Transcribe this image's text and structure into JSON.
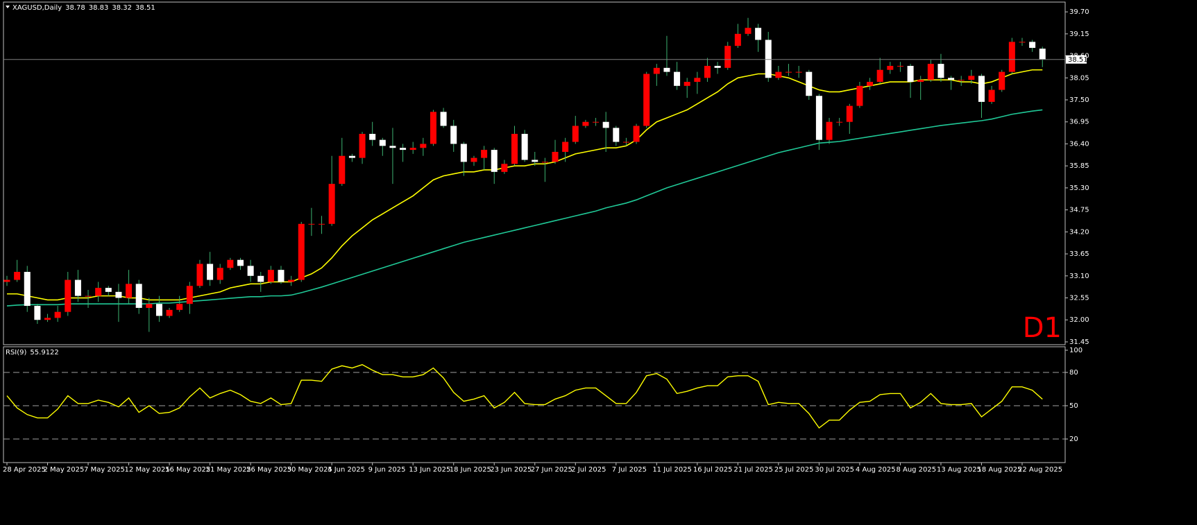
{
  "chart_data": [
    {
      "type": "candlestick",
      "title": "XAGUSD,Daily",
      "categories": [
        "28 Apr 2025",
        null,
        null,
        null,
        "2 May 2025",
        null,
        null,
        null,
        "7 May 2025",
        null,
        null,
        null,
        "12 May 2025",
        null,
        null,
        null,
        "16 May 2025",
        null,
        null,
        null,
        "21 May 2025",
        null,
        null,
        null,
        "26 May 2025",
        null,
        null,
        null,
        "30 May 2025",
        null,
        null,
        null,
        "4 Jun 2025",
        null,
        null,
        null,
        "9 Jun 2025",
        null,
        null,
        null,
        "13 Jun 2025",
        null,
        null,
        null,
        "18 Jun 2025",
        null,
        null,
        null,
        "23 Jun 2025",
        null,
        null,
        null,
        "27 Jun 2025",
        null,
        null,
        null,
        "2 Jul 2025",
        null,
        null,
        null,
        "7 Jul 2025",
        null,
        null,
        null,
        "11 Jul 2025",
        null,
        null,
        null,
        "16 Jul 2025",
        null,
        null,
        null,
        "21 Jul 2025",
        null,
        null,
        null,
        "25 Jul 2025",
        null,
        null,
        null,
        "30 Jul 2025",
        null,
        null,
        null,
        "4 Aug 2025",
        null,
        null,
        null,
        "8 Aug 2025",
        null,
        null,
        null,
        "13 Aug 2025",
        null,
        null,
        null,
        "18 Aug 2025",
        null,
        null,
        null,
        "22 Aug 2025",
        null,
        null
      ],
      "open": [
        32.95,
        33.0,
        33.2,
        32.35,
        32.0,
        32.05,
        32.2,
        33.0,
        32.6,
        32.6,
        32.8,
        32.7,
        32.55,
        32.9,
        32.3,
        32.4,
        32.1,
        32.25,
        32.4,
        32.85,
        33.4,
        33.0,
        33.3,
        33.5,
        33.35,
        33.1,
        32.95,
        33.25,
        32.95,
        33.0,
        34.4,
        34.4,
        34.4,
        35.4,
        36.1,
        36.05,
        36.65,
        36.5,
        36.35,
        36.3,
        36.25,
        36.3,
        36.4,
        37.2,
        36.85,
        36.4,
        35.95,
        36.05,
        36.25,
        35.7,
        35.9,
        36.65,
        36.0,
        35.95,
        35.95,
        36.2,
        36.45,
        36.85,
        36.95,
        36.95,
        36.8,
        36.45,
        36.45,
        36.85,
        38.15,
        38.3,
        38.2,
        37.85,
        37.95,
        38.05,
        38.35,
        38.3,
        38.85,
        39.15,
        39.3,
        39.0,
        38.05,
        38.2,
        38.2,
        38.2,
        37.6,
        36.5,
        36.95,
        36.95,
        37.35,
        37.85,
        37.95,
        38.25,
        38.35,
        38.35,
        37.95,
        38.0,
        38.4,
        38.05,
        38.0,
        38.0,
        38.1,
        37.45,
        37.75,
        38.2,
        38.95,
        38.95,
        38.78
      ],
      "high": [
        33.1,
        33.5,
        33.35,
        32.4,
        32.15,
        32.35,
        33.2,
        33.25,
        32.75,
        32.95,
        32.85,
        32.9,
        33.25,
        33.0,
        32.55,
        32.6,
        32.3,
        32.6,
        32.95,
        33.5,
        33.7,
        33.4,
        33.55,
        33.55,
        33.5,
        33.2,
        33.35,
        33.35,
        33.1,
        34.45,
        34.8,
        34.6,
        36.1,
        36.55,
        36.15,
        36.7,
        36.95,
        36.55,
        36.8,
        36.4,
        36.45,
        36.55,
        37.25,
        37.3,
        37.0,
        36.45,
        36.1,
        36.35,
        36.3,
        36.0,
        36.85,
        36.75,
        36.2,
        36.05,
        36.5,
        36.55,
        37.1,
        37.0,
        37.05,
        37.2,
        36.85,
        36.55,
        36.9,
        38.2,
        38.4,
        39.1,
        38.45,
        38.05,
        38.2,
        38.55,
        38.45,
        38.95,
        39.4,
        39.55,
        39.4,
        39.2,
        38.35,
        38.4,
        38.35,
        38.25,
        37.65,
        37.05,
        37.05,
        37.4,
        37.95,
        38.05,
        38.55,
        38.45,
        38.45,
        38.4,
        38.1,
        38.5,
        38.65,
        38.1,
        38.1,
        38.25,
        38.15,
        37.85,
        38.25,
        39.05,
        39.05,
        39.0,
        38.83
      ],
      "low": [
        32.85,
        32.95,
        32.2,
        31.9,
        31.95,
        31.95,
        32.1,
        32.45,
        32.3,
        32.45,
        32.6,
        31.95,
        32.4,
        32.15,
        31.7,
        31.95,
        32.05,
        32.2,
        32.15,
        32.8,
        32.85,
        32.9,
        33.25,
        33.25,
        32.95,
        32.7,
        32.9,
        32.9,
        32.85,
        32.95,
        34.1,
        34.15,
        34.35,
        35.35,
        35.95,
        35.9,
        36.35,
        36.1,
        35.4,
        35.95,
        36.15,
        36.1,
        36.35,
        36.8,
        36.2,
        35.6,
        35.85,
        35.75,
        35.4,
        35.65,
        35.85,
        35.95,
        35.85,
        35.45,
        35.9,
        35.95,
        36.4,
        36.8,
        36.85,
        36.2,
        36.35,
        36.35,
        36.4,
        36.8,
        37.85,
        38.1,
        37.75,
        37.55,
        37.65,
        37.95,
        38.15,
        38.25,
        38.8,
        39.1,
        38.7,
        37.95,
        38.0,
        38.1,
        38.05,
        37.5,
        36.25,
        36.4,
        36.85,
        36.65,
        37.3,
        37.75,
        37.9,
        38.15,
        38.2,
        37.55,
        37.5,
        37.95,
        37.95,
        37.75,
        37.85,
        37.9,
        37.05,
        37.4,
        37.7,
        38.15,
        38.85,
        38.7,
        38.32
      ],
      "close": [
        33.0,
        33.2,
        32.35,
        32.0,
        32.05,
        32.2,
        33.0,
        32.6,
        32.6,
        32.8,
        32.7,
        32.55,
        32.9,
        32.3,
        32.4,
        32.1,
        32.25,
        32.4,
        32.85,
        33.4,
        33.0,
        33.3,
        33.5,
        33.35,
        33.1,
        32.95,
        33.25,
        32.95,
        33.0,
        34.4,
        34.4,
        34.4,
        35.4,
        36.1,
        36.05,
        36.65,
        36.5,
        36.35,
        36.3,
        36.25,
        36.3,
        36.4,
        37.2,
        36.85,
        36.4,
        35.95,
        36.05,
        36.25,
        35.7,
        35.9,
        36.65,
        36.0,
        35.95,
        35.95,
        36.2,
        36.45,
        36.85,
        36.95,
        36.95,
        36.8,
        36.45,
        36.45,
        36.85,
        38.15,
        38.3,
        38.2,
        37.85,
        37.95,
        38.05,
        38.35,
        38.3,
        38.85,
        39.15,
        39.3,
        39.0,
        38.05,
        38.2,
        38.2,
        38.2,
        37.6,
        36.5,
        36.95,
        36.95,
        37.35,
        37.85,
        37.95,
        38.25,
        38.35,
        38.35,
        37.95,
        38.0,
        38.4,
        38.05,
        38.0,
        38.0,
        38.1,
        37.45,
        37.75,
        38.2,
        38.95,
        38.95,
        38.8,
        38.51
      ],
      "up_color": "#ff0000",
      "down_color": "#ffffff",
      "wick_color": "#3cb371",
      "ma_lines": [
        {
          "color": "#ffff00",
          "values": [
            32.65,
            32.65,
            32.6,
            32.55,
            32.5,
            32.5,
            32.55,
            32.55,
            32.55,
            32.6,
            32.6,
            32.6,
            32.55,
            32.55,
            32.5,
            32.5,
            32.5,
            32.5,
            32.55,
            32.6,
            32.65,
            32.7,
            32.8,
            32.85,
            32.9,
            32.9,
            32.95,
            32.95,
            32.95,
            33.05,
            33.15,
            33.3,
            33.55,
            33.85,
            34.1,
            34.3,
            34.5,
            34.65,
            34.8,
            34.95,
            35.1,
            35.3,
            35.5,
            35.6,
            35.65,
            35.7,
            35.7,
            35.75,
            35.75,
            35.8,
            35.85,
            35.85,
            35.9,
            35.9,
            35.95,
            36.05,
            36.15,
            36.2,
            36.25,
            36.3,
            36.3,
            36.35,
            36.5,
            36.75,
            36.95,
            37.05,
            37.15,
            37.25,
            37.4,
            37.55,
            37.7,
            37.9,
            38.05,
            38.1,
            38.15,
            38.15,
            38.1,
            38.05,
            37.95,
            37.85,
            37.75,
            37.7,
            37.7,
            37.75,
            37.8,
            37.85,
            37.9,
            37.95,
            37.95,
            37.95,
            38.0,
            38.0,
            38.0,
            38.0,
            37.95,
            37.95,
            37.9,
            37.95,
            38.05,
            38.15,
            38.2,
            38.25,
            38.25
          ]
        },
        {
          "color": "#20c997",
          "values": [
            32.35,
            32.37,
            32.38,
            32.38,
            32.38,
            32.38,
            32.4,
            32.4,
            32.4,
            32.4,
            32.4,
            32.4,
            32.4,
            32.4,
            32.4,
            32.42,
            32.42,
            32.44,
            32.46,
            32.48,
            32.5,
            32.52,
            32.54,
            32.56,
            32.58,
            32.58,
            32.6,
            32.6,
            32.62,
            32.68,
            32.75,
            32.82,
            32.9,
            32.98,
            33.06,
            33.14,
            33.22,
            33.3,
            33.38,
            33.46,
            33.54,
            33.62,
            33.7,
            33.78,
            33.86,
            33.94,
            34.0,
            34.06,
            34.12,
            34.18,
            34.24,
            34.3,
            34.36,
            34.42,
            34.48,
            34.54,
            34.6,
            34.66,
            34.72,
            34.8,
            34.86,
            34.92,
            35.0,
            35.1,
            35.2,
            35.3,
            35.38,
            35.46,
            35.54,
            35.62,
            35.7,
            35.78,
            35.86,
            35.94,
            36.02,
            36.1,
            36.18,
            36.24,
            36.3,
            36.36,
            36.42,
            36.44,
            36.46,
            36.5,
            36.54,
            36.58,
            36.62,
            36.66,
            36.7,
            36.74,
            36.78,
            36.82,
            36.86,
            36.89,
            36.92,
            36.95,
            36.98,
            37.02,
            37.08,
            37.14,
            37.18,
            37.22,
            37.25
          ]
        }
      ],
      "last_price_line": true,
      "ylim": [
        31.38,
        39.91
      ],
      "yticks": [
        31.45,
        {
          "value": 32,
          "label": "32.00"
        },
        32.55,
        {
          "value": 33.1,
          "label": "33.10"
        },
        33.65,
        {
          "value": 34.2,
          "label": "34.20"
        },
        34.75,
        {
          "value": 35.3,
          "label": "35.30"
        },
        35.85,
        {
          "value": 36.4,
          "label": "36.40"
        },
        36.95,
        {
          "value": 37.5,
          "label": "37.50"
        },
        38.05,
        {
          "value": 38.6,
          "label": "38.60"
        },
        39.15,
        {
          "value": 39.7,
          "label": "39.70"
        }
      ],
      "watermark": "D1",
      "watermark_color": "#ff0000"
    },
    {
      "type": "line",
      "title": "RSI(9)",
      "values": [
        59,
        48,
        42,
        39,
        39,
        47,
        59,
        52,
        52,
        55,
        53,
        49,
        57,
        44,
        50,
        43,
        44,
        48,
        58,
        66,
        57,
        61,
        64,
        60,
        54,
        52,
        57,
        51,
        52,
        73,
        73,
        72,
        83,
        86,
        84,
        87,
        82,
        78,
        78,
        76,
        76,
        78,
        84,
        75,
        62,
        54,
        56,
        59,
        48,
        53,
        62,
        52,
        51,
        51,
        56,
        59,
        64,
        66,
        66,
        59,
        52,
        52,
        62,
        77,
        79,
        74,
        61,
        63,
        66,
        68,
        68,
        76,
        77,
        77,
        72,
        51,
        53,
        52,
        52,
        43,
        30,
        37,
        37,
        46,
        53,
        54,
        60,
        61,
        61,
        48,
        53,
        61,
        52,
        51,
        51,
        52,
        40,
        47,
        54,
        67,
        67,
        64,
        55.9122
      ],
      "color": "#ffff00",
      "ylim": [
        0,
        100
      ],
      "yticks": [
        20,
        50,
        80,
        100
      ],
      "levels": [
        20,
        50,
        80
      ]
    }
  ]
}
